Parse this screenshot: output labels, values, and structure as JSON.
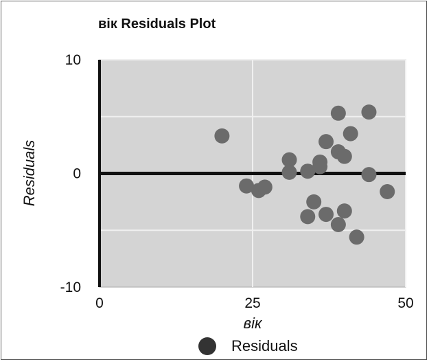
{
  "chart_data": {
    "type": "scatter",
    "title": "вік Residuals Plot",
    "xlabel": "вік",
    "ylabel": "Residuals",
    "xlim": [
      0,
      50
    ],
    "ylim": [
      -10,
      10
    ],
    "x_ticks": [
      "0",
      "25",
      "50"
    ],
    "y_ticks": [
      "10",
      "0",
      "-10"
    ],
    "x_tick_values": [
      0,
      25,
      50
    ],
    "y_tick_values": [
      10,
      0,
      -10
    ],
    "grid": true,
    "legend_position": "bottom",
    "series": [
      {
        "name": "Residuals",
        "color": "#6b6b6b",
        "points": [
          {
            "x": 20,
            "y": 3.3
          },
          {
            "x": 24,
            "y": -1.1
          },
          {
            "x": 26,
            "y": -1.5
          },
          {
            "x": 27,
            "y": -1.2
          },
          {
            "x": 31,
            "y": 1.2
          },
          {
            "x": 31,
            "y": 0.1
          },
          {
            "x": 34,
            "y": 0.2
          },
          {
            "x": 34,
            "y": -3.8
          },
          {
            "x": 35,
            "y": -2.5
          },
          {
            "x": 36,
            "y": 1.0
          },
          {
            "x": 36,
            "y": 0.6
          },
          {
            "x": 37,
            "y": 2.8
          },
          {
            "x": 37,
            "y": -3.6
          },
          {
            "x": 39,
            "y": 5.3
          },
          {
            "x": 39,
            "y": 1.9
          },
          {
            "x": 39,
            "y": -4.5
          },
          {
            "x": 40,
            "y": 1.5
          },
          {
            "x": 40,
            "y": -3.3
          },
          {
            "x": 41,
            "y": 3.5
          },
          {
            "x": 42,
            "y": -5.6
          },
          {
            "x": 44,
            "y": 5.4
          },
          {
            "x": 44,
            "y": -0.1
          },
          {
            "x": 47,
            "y": -1.6
          }
        ]
      }
    ]
  }
}
